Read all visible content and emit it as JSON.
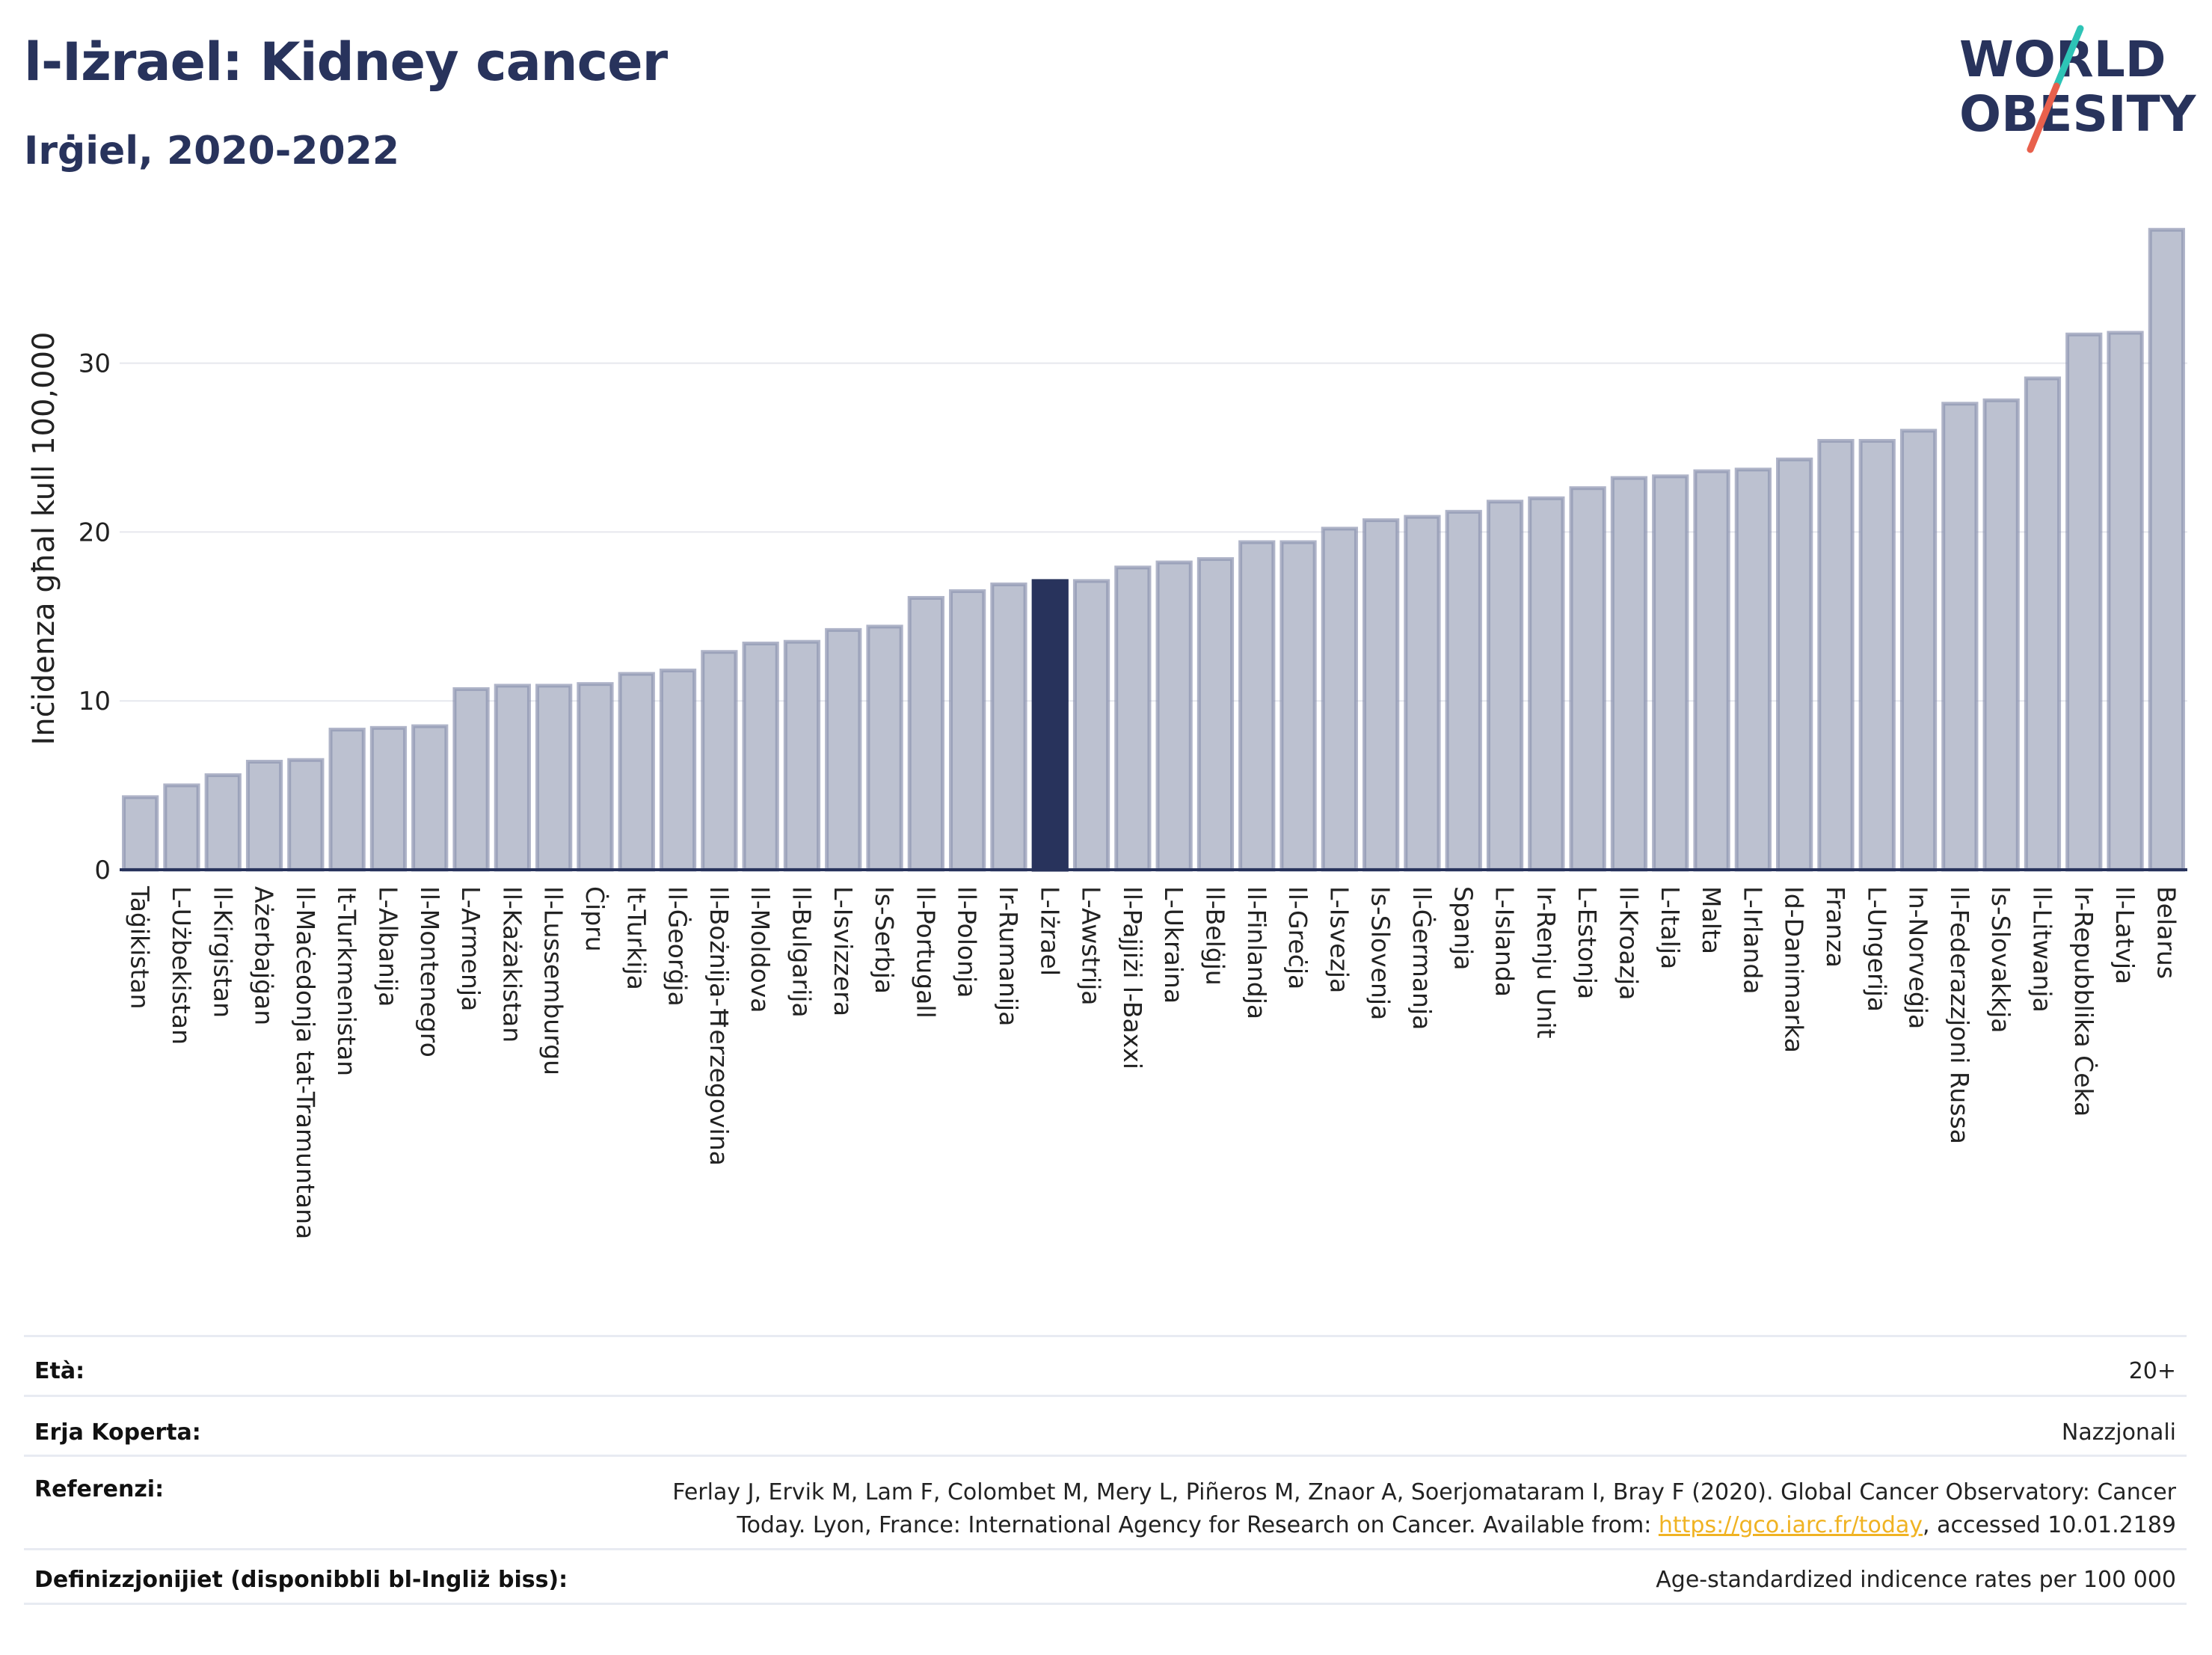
{
  "title": "l-Iżrael: Kidney cancer",
  "subtitle": "Irġiel, 2020-2022",
  "logo": {
    "line1": "WORLD",
    "line2": "OBESITY",
    "slash_colors": [
      "#2ec4b6",
      "#e8604c"
    ]
  },
  "chart_data": {
    "type": "bar",
    "ylabel": "Inċidenza għal kull 100,000",
    "xlabel": "",
    "ylim": [
      0,
      38
    ],
    "yticks": [
      0,
      10,
      20,
      30
    ],
    "grid": true,
    "highlight": "L-Iżrael",
    "colors": {
      "bar": "#bcc1d0",
      "bar_edge": "#8d94b0",
      "highlight": "#28335c"
    },
    "categories": [
      "Taġikistan",
      "L-Użbekistan",
      "Il-Kirgistan",
      "Ażerbajġan",
      "Il-Maċedonja tat-Tramuntana",
      "It-Turkmenistan",
      "L-Albanija",
      "Il-Montenegro",
      "L-Armenja",
      "Il-Każakistan",
      "Il-Lussemburgu",
      "Ċipru",
      "It-Turkija",
      "Il-Ġeorġja",
      "Il-Bożnija-Ħerzegovina",
      "Il-Moldova",
      "Il-Bulgarija",
      "L-Isvizzera",
      "Is-Serbja",
      "Il-Portugall",
      "Il-Polonja",
      "Ir-Rumanija",
      "L-Iżrael",
      "L-Awstrija",
      "Il-Pajjiżi l-Baxxi",
      "L-Ukraina",
      "Il-Belġju",
      "Il-Finlandja",
      "Il-Greċja",
      "L-Isvezja",
      "Is-Slovenja",
      "Il-Ġermanja",
      "Spanja",
      "L-Islanda",
      "Ir-Renju Unit",
      "L-Estonja",
      "Il-Kroazja",
      "L-Italja",
      "Malta",
      "L-Irlanda",
      "Id-Danimarka",
      "Franza",
      "L-Ungerija",
      "In-Norveġja",
      "Il-Federazzjoni Russa",
      "Is-Slovakkja",
      "Il-Litwanja",
      "Ir-Repubblika Ċeka",
      "Il-Latvja",
      "Belarus"
    ],
    "values": [
      4.3,
      5.0,
      5.6,
      6.4,
      6.5,
      8.3,
      8.4,
      8.5,
      10.7,
      10.9,
      10.9,
      11.0,
      11.6,
      11.8,
      12.9,
      13.4,
      13.5,
      14.2,
      14.4,
      16.1,
      16.5,
      16.9,
      17.1,
      17.1,
      17.9,
      18.2,
      18.4,
      19.4,
      19.4,
      20.2,
      20.7,
      20.9,
      21.2,
      21.8,
      22.0,
      22.6,
      23.2,
      23.3,
      23.6,
      23.7,
      24.3,
      25.4,
      25.4,
      26.0,
      27.6,
      27.8,
      29.1,
      31.7,
      31.8,
      37.9
    ]
  },
  "meta": {
    "age_label": "Età:",
    "age_value": "20+",
    "coverage_label": "Erja Koperta:",
    "coverage_value": "Nazzjonali",
    "references_label": "Referenzi:",
    "references_line1": "Ferlay J, Ervik M, Lam F, Colombet M, Mery L, Piñeros M, Znaor A, Soerjomataram I, Bray F (2020). Global Cancer Observatory: Cancer",
    "references_line2_pre": "Today. Lyon, France: International Agency for Research on Cancer. Available from: ",
    "references_link": "https://gco.iarc.fr/today",
    "references_line2_post": ", accessed 10.01.2189",
    "definitions_label": "Definizzjonijiet (disponibbli bl-Ingliż biss):",
    "definitions_value": "Age-standardized indicence rates per 100 000"
  }
}
